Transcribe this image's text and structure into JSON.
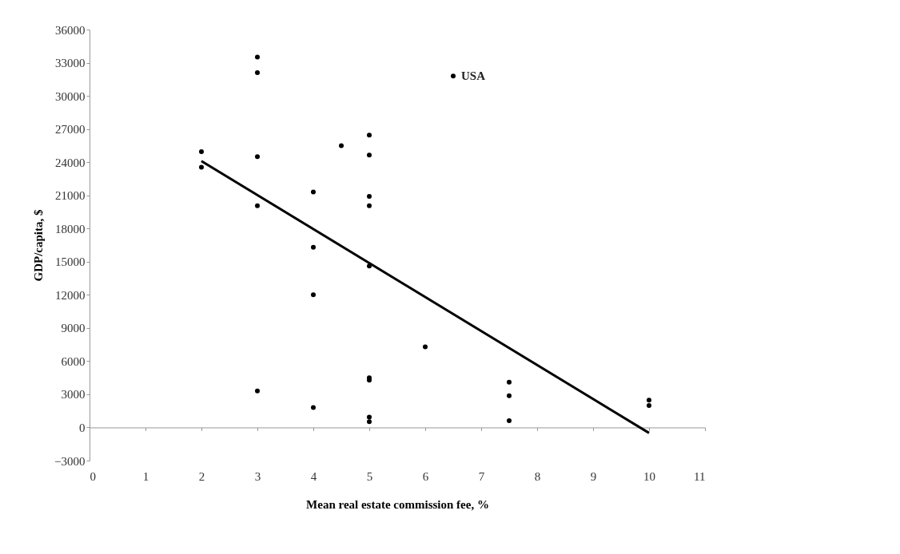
{
  "chart_data": {
    "type": "scatter",
    "xlabel": "Mean real estate commission fee, %",
    "ylabel": "GDP/capita, $",
    "xlim": [
      0,
      11
    ],
    "xticks": [
      0,
      1,
      2,
      3,
      4,
      5,
      6,
      7,
      8,
      9,
      10,
      11
    ],
    "ylim": [
      -3000,
      36000
    ],
    "yticks": [
      -3000,
      0,
      3000,
      6000,
      9000,
      12000,
      15000,
      18000,
      21000,
      24000,
      27000,
      30000,
      33000,
      36000
    ],
    "marker": "circle",
    "series": [
      {
        "color": "#000000",
        "x": [
          2,
          2,
          3,
          3,
          3,
          3,
          3,
          4,
          4,
          4,
          4,
          4.5,
          5,
          5,
          5,
          5,
          5,
          5,
          5,
          5,
          5,
          6,
          6.5,
          7.5,
          7.5,
          7.5,
          10,
          10
        ],
        "values": [
          24950,
          23550,
          33500,
          32100,
          24500,
          20050,
          3300,
          21300,
          16300,
          12000,
          1800,
          25500,
          26450,
          24650,
          20900,
          20050,
          14600,
          4500,
          4270,
          930,
          520,
          7300,
          31800,
          4100,
          2860,
          620,
          2470,
          1990
        ]
      },
      {
        "type": "line",
        "color": "#000000",
        "x": [
          2,
          10
        ],
        "values": [
          24100,
          -500
        ],
        "marker": "none",
        "line_style": "solid"
      }
    ],
    "annotations": [
      {
        "text": "USA",
        "x": 6.5,
        "y": 31800
      }
    ]
  }
}
